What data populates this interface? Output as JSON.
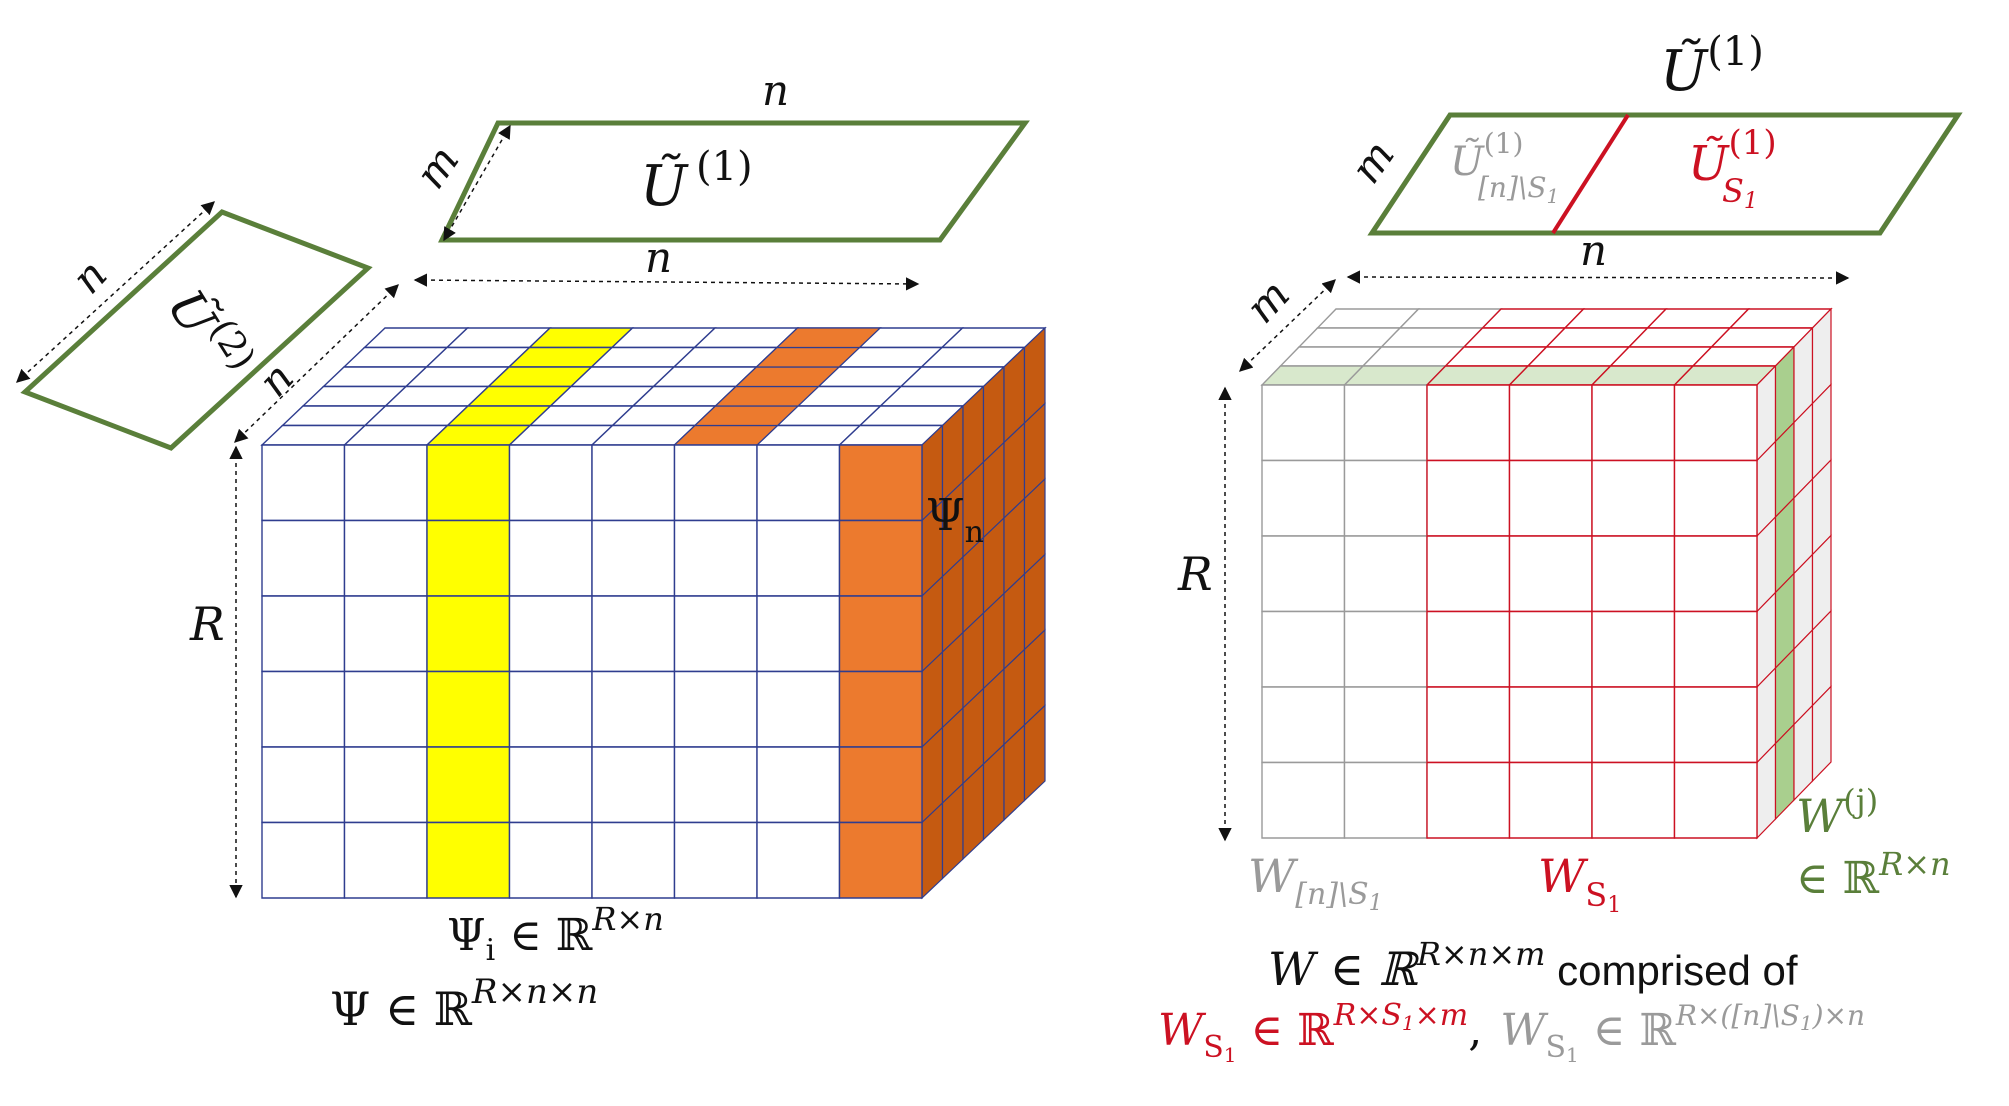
{
  "colors": {
    "green": "#5a7f3a",
    "green_fill": "#a9cf8e",
    "red": "#cc1122",
    "gray": "#9a9a9a",
    "yellow": "#ffff00",
    "orange": "#ec7a2e",
    "orange_dark": "#c55a11",
    "grid_blue": "#2f3d8f",
    "black": "#111111"
  },
  "left": {
    "u1_label": "Ũ",
    "u1_sup": "(1)",
    "u1_top_n": "n",
    "u1_side_m": "m",
    "u2_label": "Ũ",
    "u2_sup": "(2)",
    "u2_n_outer": "n",
    "u2_n_inner": "n",
    "cube_top_n": "n",
    "cube_R": "R",
    "psi_n": "Ψ",
    "psi_n_sub": "n",
    "psi_i": "Ψ",
    "psi_i_sub": "i",
    "psi_i_space": " ∈ ℝ",
    "psi_i_sup": "R×n",
    "psi_full": "Ψ ∈ ℝ",
    "psi_full_sup": "R×n×n"
  },
  "right": {
    "u1_title": "Ũ",
    "u1_title_sup": "(1)",
    "u1_side_m": "m",
    "u1_bottom_n": "n",
    "u1_left": "Ũ",
    "u1_left_sup": "(1)",
    "u1_left_sub": "[n]\\S",
    "u1_left_sub2": "1",
    "u1_right": "Ũ",
    "u1_right_sup": "(1)",
    "u1_right_sub": "S",
    "u1_right_sub2": "1",
    "cube_m": "m",
    "cube_R": "R",
    "w_gray": "W",
    "w_gray_sub": "[n]\\S",
    "w_gray_sub2": "1",
    "w_red": "W",
    "w_red_sub": "S",
    "w_red_sub2": "1",
    "w_j": "W",
    "w_j_sup": "(j)",
    "w_j_space": "∈ ℝ",
    "w_j_space_sup": "R×n",
    "w_full": "W ∈ ℝ",
    "w_full_sup": "R×n×m",
    "w_full_suffix": " comprised of",
    "ws_red": "W",
    "ws_red_sub": "S",
    "ws_red_sub2": "1",
    "ws_red_in": " ∈ ℝ",
    "ws_red_sup": "R×S",
    "ws_red_sup_sub": "1",
    "ws_red_sup_tail": "×m",
    "comma": ",",
    "ws_gray": "W",
    "ws_gray_sub": "S",
    "ws_gray_sub2": "1",
    "ws_gray_in": " ∈ ℝ",
    "ws_gray_sup": "R×([n]\\S",
    "ws_gray_sup_sub": "1",
    "ws_gray_sup_tail": ")×n"
  }
}
